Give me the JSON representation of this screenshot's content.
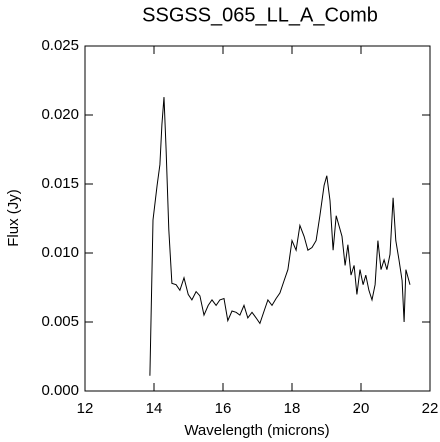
{
  "chart_data": {
    "type": "line",
    "title": "SSGSS_065_LL_A_Comb",
    "x_label": "Wavelength (microns)",
    "y_label": "Flux (Jy)",
    "xlim": [
      12,
      22
    ],
    "xticks": [
      12,
      14,
      16,
      18,
      20,
      22
    ],
    "ylim": [
      0,
      0.025
    ],
    "yticks": [
      {
        "value": 0,
        "label": "0.000"
      },
      {
        "value": 0.005,
        "label": "0.005"
      },
      {
        "value": 0.01,
        "label": "0.010"
      },
      {
        "value": 0.015,
        "label": "0.015"
      },
      {
        "value": 0.02,
        "label": "0.020"
      },
      {
        "value": 0.025,
        "label": "0.025"
      }
    ],
    "series": [
      {
        "color": "#000000",
        "x": [
          13.88,
          13.97,
          14.09,
          14.17,
          14.23,
          14.29,
          14.35,
          14.43,
          14.52,
          14.64,
          14.75,
          14.87,
          14.99,
          15.1,
          15.22,
          15.33,
          15.45,
          15.57,
          15.68,
          15.8,
          15.91,
          16.03,
          16.14,
          16.26,
          16.38,
          16.49,
          16.61,
          16.72,
          16.84,
          16.96,
          17.07,
          17.19,
          17.3,
          17.42,
          17.54,
          17.65,
          17.77,
          17.88,
          18.0,
          18.12,
          18.23,
          18.35,
          18.46,
          18.58,
          18.7,
          18.81,
          18.93,
          19.01,
          19.1,
          19.19,
          19.28,
          19.36,
          19.45,
          19.54,
          19.62,
          19.71,
          19.8,
          19.88,
          19.97,
          20.06,
          20.14,
          20.23,
          20.32,
          20.41,
          20.49,
          20.58,
          20.67,
          20.75,
          20.84,
          20.93,
          21.01,
          21.1,
          21.19,
          21.25,
          21.3,
          21.42
        ],
        "values": [
          0.0011,
          0.0124,
          0.0149,
          0.0164,
          0.0193,
          0.0213,
          0.0175,
          0.0117,
          0.0078,
          0.0077,
          0.0073,
          0.0082,
          0.007,
          0.0066,
          0.0072,
          0.0069,
          0.0055,
          0.0062,
          0.0066,
          0.0062,
          0.0066,
          0.0067,
          0.0051,
          0.0058,
          0.0057,
          0.0055,
          0.0062,
          0.0053,
          0.0057,
          0.0053,
          0.0049,
          0.0058,
          0.0066,
          0.0062,
          0.0067,
          0.0071,
          0.008,
          0.0088,
          0.0109,
          0.0102,
          0.012,
          0.0112,
          0.0102,
          0.0104,
          0.0109,
          0.0127,
          0.0149,
          0.0156,
          0.0138,
          0.0102,
          0.0127,
          0.012,
          0.0112,
          0.0091,
          0.0106,
          0.0084,
          0.0091,
          0.007,
          0.0088,
          0.0077,
          0.0084,
          0.0073,
          0.0066,
          0.0077,
          0.0109,
          0.0088,
          0.0095,
          0.0088,
          0.0099,
          0.014,
          0.0109,
          0.0095,
          0.008,
          0.005,
          0.0088,
          0.0077
        ]
      }
    ]
  }
}
